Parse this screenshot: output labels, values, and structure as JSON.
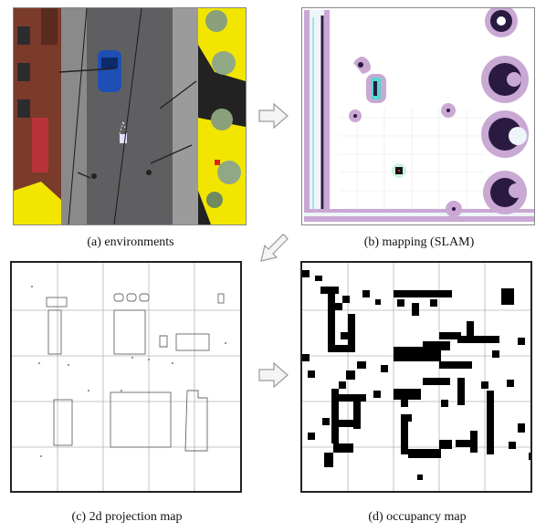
{
  "panels": {
    "a": {
      "caption": "(a) environments"
    },
    "b": {
      "caption": "(b) mapping (SLAM)"
    },
    "c": {
      "caption": "(c) 2d projection map"
    },
    "d": {
      "caption": "(d) occupancy map"
    }
  },
  "arrows": [
    {
      "name": "arrow-a-to-b",
      "direction": "right"
    },
    {
      "name": "arrow-b-to-c",
      "direction": "down-left"
    },
    {
      "name": "arrow-c-to-d",
      "direction": "right"
    }
  ],
  "colors": {
    "road": "#5f5f62",
    "sidewalk": "#9b9b9b",
    "highlight": "#f2e600",
    "building": "#7a3b2b",
    "car": "#1f4fb5",
    "slam_wall": "#c9a8d4",
    "slam_dark": "#2a1a40",
    "slam_cyan": "#58d6d0"
  }
}
